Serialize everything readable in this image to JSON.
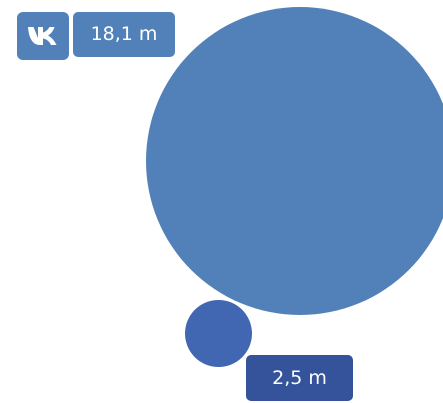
{
  "vk_icon": "vk-logo-icon",
  "labels": {
    "vk_value": "18,1 m",
    "other_value": "2,5 m"
  },
  "colors": {
    "vk_blue": "#5181b8",
    "small_circle": "#4166b2",
    "bottom_label": "#35539a"
  }
}
